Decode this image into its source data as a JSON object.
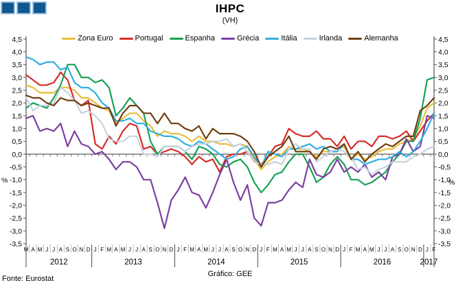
{
  "header": {
    "title": "IHPC",
    "subtitle": "(VH)"
  },
  "logo": {
    "square_count": 3,
    "fill_color": "#10588F",
    "border_color": "#A2C2DB"
  },
  "footer": {
    "source": "Fonte: Eurostat",
    "credit": "Gráfico: GEE"
  },
  "y_axis": {
    "unit_left": "%",
    "unit_right": "%",
    "ticks": [
      "4,5",
      "4,0",
      "3,5",
      "3,0",
      "2,5",
      "2,0",
      "1,5",
      "1,0",
      "0,5",
      "0,0",
      "-0,5",
      "-1,0",
      "-1,5",
      "-2,0",
      "-2,5",
      "-3,0",
      "-3,5"
    ]
  },
  "chart_data": {
    "type": "line",
    "title": "IHPC",
    "subtitle": "(VH)",
    "ylabel": "%",
    "ylim": [
      -3.5,
      4.5
    ],
    "ytick_step": 0.5,
    "grid": "none",
    "legend_position": "top",
    "x_groups": [
      {
        "year": "2012",
        "months": [
          "M",
          "A",
          "M",
          "J",
          "J",
          "A",
          "S",
          "O",
          "N",
          "D"
        ]
      },
      {
        "year": "2013",
        "months": [
          "J",
          "F",
          "M",
          "A",
          "M",
          "J",
          "J",
          "A",
          "S",
          "O",
          "N",
          "D"
        ]
      },
      {
        "year": "2014",
        "months": [
          "J",
          "F",
          "M",
          "A",
          "M",
          "J",
          "J",
          "A",
          "S",
          "O",
          "N",
          "D"
        ]
      },
      {
        "year": "2015",
        "months": [
          "J",
          "F",
          "M",
          "A",
          "M",
          "J",
          "J",
          "A",
          "S",
          "O",
          "N",
          "D"
        ]
      },
      {
        "year": "2016",
        "months": [
          "J",
          "F",
          "M",
          "A",
          "M",
          "J",
          "J",
          "A",
          "S",
          "O",
          "N",
          "D"
        ]
      },
      {
        "year": "2017",
        "months": [
          "J",
          "F"
        ]
      }
    ],
    "series": [
      {
        "name": "Zona Euro",
        "color": "#E7BE38",
        "values": [
          2.7,
          2.6,
          2.4,
          2.4,
          2.4,
          2.6,
          2.6,
          2.5,
          2.2,
          2.2,
          2.0,
          1.8,
          1.7,
          1.2,
          1.4,
          1.6,
          1.6,
          1.3,
          1.1,
          0.7,
          0.9,
          0.8,
          0.8,
          0.7,
          0.5,
          0.7,
          0.5,
          0.5,
          0.4,
          0.4,
          0.3,
          0.4,
          0.3,
          -0.2,
          -0.6,
          -0.3,
          -0.1,
          0.0,
          0.3,
          0.2,
          0.2,
          0.1,
          -0.1,
          0.1,
          0.1,
          0.2,
          0.3,
          -0.2,
          0.0,
          -0.2,
          -0.1,
          0.1,
          0.2,
          0.2,
          0.4,
          0.5,
          0.6,
          1.1,
          1.8,
          2.0
        ]
      },
      {
        "name": "Portugal",
        "color": "#D62B27",
        "values": [
          3.1,
          2.9,
          2.7,
          2.7,
          2.8,
          3.2,
          2.9,
          2.1,
          1.9,
          2.1,
          0.4,
          0.2,
          0.7,
          0.4,
          0.9,
          1.2,
          1.1,
          0.2,
          0.3,
          0.0,
          0.1,
          0.2,
          0.1,
          -0.1,
          -0.4,
          -0.1,
          -0.3,
          -0.2,
          -0.7,
          -0.1,
          0.0,
          0.0,
          0.1,
          -0.3,
          -0.4,
          -0.1,
          0.3,
          0.4,
          1.0,
          0.8,
          0.7,
          0.7,
          0.9,
          0.6,
          0.6,
          0.3,
          0.7,
          0.2,
          0.5,
          0.5,
          0.3,
          0.7,
          0.7,
          0.6,
          0.7,
          0.9,
          0.5,
          0.9,
          1.3,
          1.6
        ]
      },
      {
        "name": "Espanha",
        "color": "#17A154",
        "values": [
          1.8,
          2.0,
          1.9,
          1.8,
          2.2,
          2.7,
          3.5,
          3.5,
          3.0,
          3.0,
          2.8,
          2.9,
          2.6,
          1.5,
          1.8,
          2.2,
          1.9,
          1.6,
          0.5,
          0.0,
          0.3,
          0.3,
          0.3,
          0.1,
          -0.2,
          0.3,
          0.2,
          0.0,
          -0.4,
          -0.5,
          -0.3,
          -0.2,
          -0.5,
          -1.1,
          -1.5,
          -1.2,
          -0.8,
          -0.7,
          -0.3,
          0.0,
          0.0,
          -0.5,
          -1.1,
          -0.9,
          -0.4,
          -0.1,
          -0.4,
          -1.0,
          -1.0,
          -1.2,
          -1.1,
          -0.9,
          -0.7,
          -0.3,
          0.0,
          0.5,
          0.5,
          1.4,
          2.9,
          3.0
        ]
      },
      {
        "name": "Grécia",
        "color": "#7C3FA0",
        "values": [
          1.4,
          1.5,
          0.9,
          1.0,
          0.9,
          1.2,
          0.3,
          0.9,
          0.4,
          0.3,
          0.0,
          0.1,
          -0.2,
          -0.6,
          -0.3,
          -0.3,
          -0.5,
          -1.0,
          -1.0,
          -1.9,
          -2.9,
          -1.8,
          -1.4,
          -0.9,
          -1.5,
          -1.6,
          -2.1,
          -1.5,
          -0.8,
          -0.2,
          -1.1,
          -1.8,
          -1.2,
          -2.5,
          -2.8,
          -1.9,
          -1.9,
          -1.8,
          -1.4,
          -1.1,
          -1.3,
          -0.2,
          -0.8,
          -0.9,
          -0.7,
          -0.2,
          -0.7,
          -0.5,
          -0.7,
          -0.4,
          -0.9,
          -0.7,
          -1.0,
          -0.1,
          0.0,
          0.6,
          0.1,
          0.3,
          1.5,
          1.4
        ]
      },
      {
        "name": "Itália",
        "color": "#2FAFE0",
        "values": [
          3.8,
          3.7,
          3.5,
          3.6,
          3.6,
          3.3,
          3.4,
          2.8,
          2.6,
          2.6,
          2.4,
          2.0,
          1.8,
          1.3,
          1.3,
          1.4,
          1.2,
          1.2,
          0.9,
          0.8,
          0.7,
          0.7,
          0.6,
          0.4,
          0.3,
          0.5,
          0.4,
          0.2,
          0.0,
          -0.2,
          -0.1,
          0.2,
          0.3,
          -0.1,
          -0.5,
          0.1,
          0.0,
          -0.1,
          0.2,
          0.2,
          0.3,
          0.4,
          0.2,
          0.3,
          0.1,
          0.1,
          0.4,
          -0.2,
          -0.2,
          -0.4,
          -0.3,
          -0.2,
          -0.2,
          -0.1,
          0.1,
          -0.1,
          0.1,
          0.5,
          1.0,
          1.6
        ]
      },
      {
        "name": "Irlanda",
        "color": "#C8D2E0",
        "values": [
          2.2,
          1.7,
          1.9,
          1.9,
          2.0,
          2.6,
          2.4,
          2.1,
          1.6,
          1.7,
          1.5,
          1.2,
          0.6,
          0.5,
          0.5,
          0.7,
          0.7,
          0.0,
          0.0,
          -0.1,
          0.3,
          0.3,
          0.3,
          0.1,
          0.3,
          0.4,
          0.4,
          0.5,
          0.5,
          0.6,
          0.3,
          0.4,
          0.1,
          -0.3,
          -0.4,
          -0.4,
          -0.3,
          -0.4,
          0.2,
          0.4,
          0.2,
          0.2,
          -0.3,
          -0.1,
          0.1,
          0.2,
          0.1,
          -0.1,
          -0.6,
          -0.5,
          -0.8,
          -0.6,
          -0.5,
          -0.3,
          -0.3,
          -0.3,
          -0.1,
          0.0,
          0.2,
          0.3
        ]
      },
      {
        "name": "Alemanha",
        "color": "#6F3D0F",
        "values": [
          2.3,
          2.2,
          2.2,
          2.0,
          1.9,
          2.2,
          2.1,
          2.1,
          1.9,
          2.0,
          1.9,
          1.8,
          1.8,
          1.1,
          1.6,
          1.9,
          1.9,
          1.6,
          1.6,
          1.2,
          1.6,
          1.2,
          1.2,
          1.0,
          0.9,
          1.1,
          0.6,
          1.0,
          0.8,
          0.8,
          0.8,
          0.7,
          0.5,
          0.1,
          -0.5,
          -0.1,
          0.1,
          0.3,
          0.7,
          0.1,
          0.1,
          0.1,
          -0.2,
          0.2,
          0.3,
          0.2,
          0.4,
          -0.2,
          0.1,
          -0.3,
          0.0,
          0.2,
          0.4,
          0.3,
          0.5,
          0.7,
          0.7,
          1.7,
          1.9,
          2.2
        ]
      }
    ]
  }
}
